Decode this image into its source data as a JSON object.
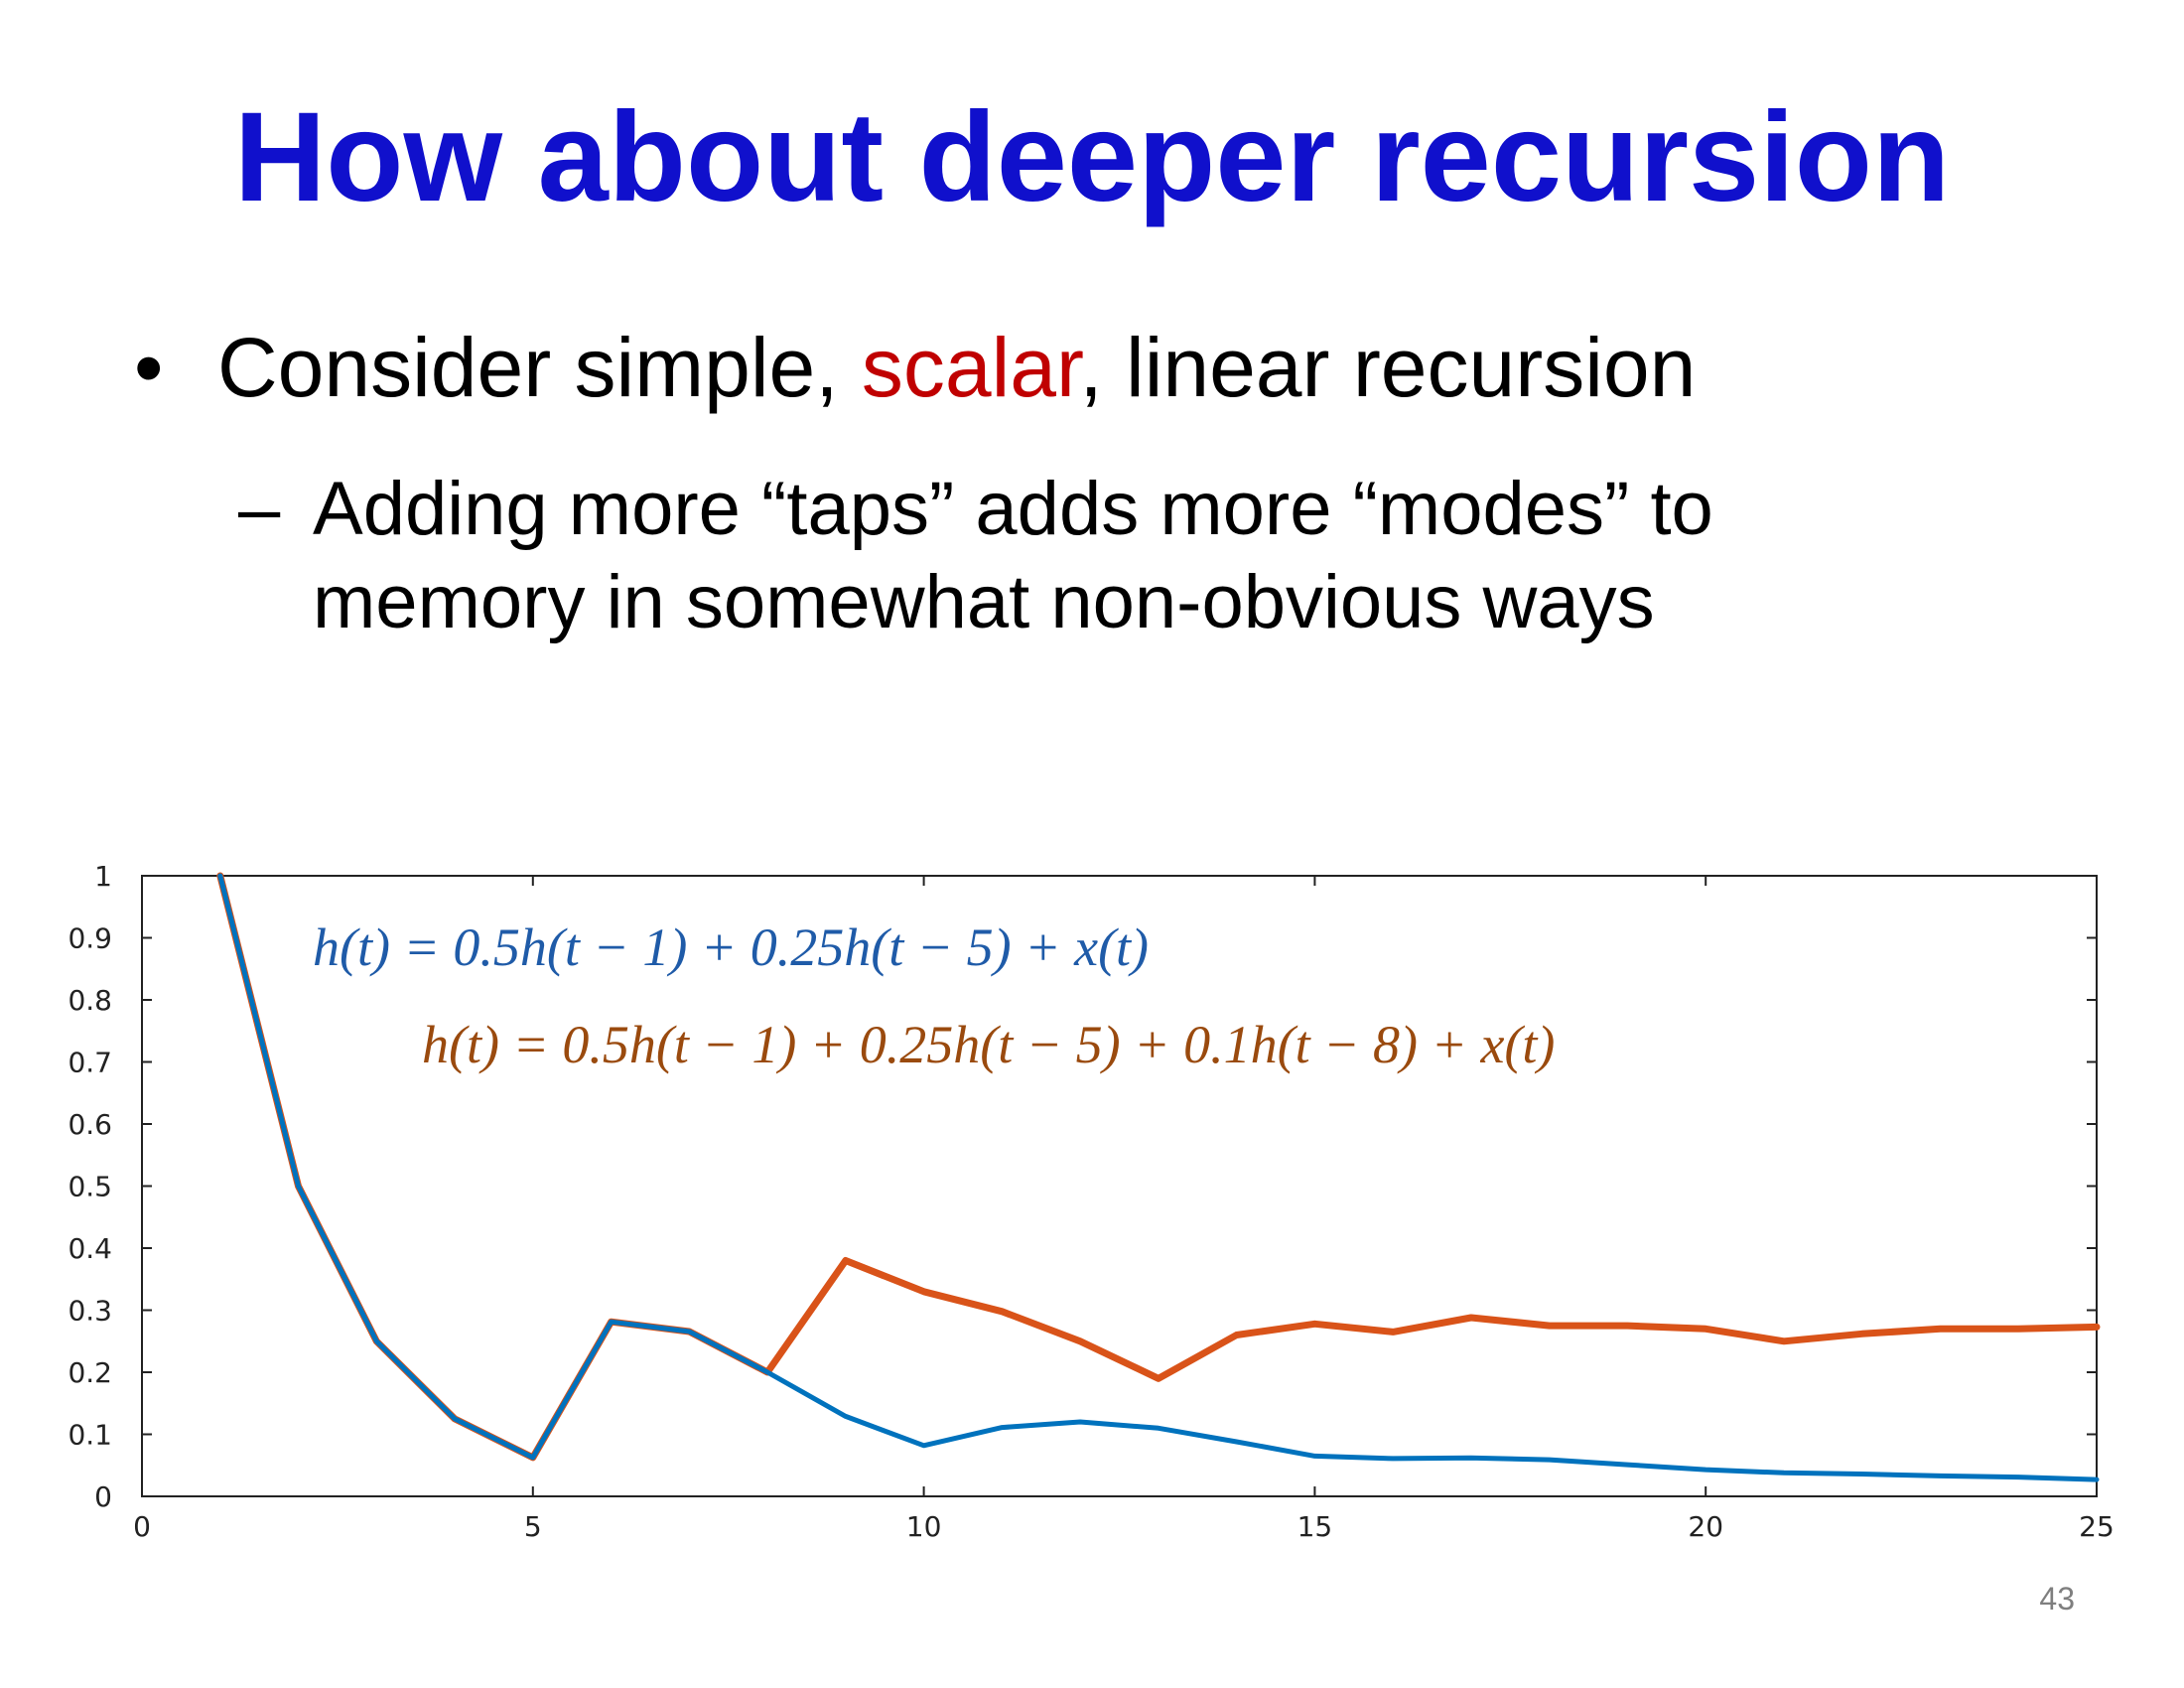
{
  "slide": {
    "title": "How about deeper recursion",
    "bullet": {
      "symbol": "•",
      "before": "Consider simple, ",
      "highlight": "scalar",
      "after": ", linear recursion"
    },
    "sub_bullet": {
      "symbol": "–",
      "text": "Adding more “taps” adds more “modes” to memory in somewhat non-obvious ways"
    },
    "slide_number": "43"
  },
  "chart_data": {
    "type": "line",
    "title": "",
    "xlabel": "",
    "ylabel": "",
    "xlim": [
      0,
      25
    ],
    "ylim": [
      0,
      1
    ],
    "xticks": [
      "0",
      "5",
      "10",
      "15",
      "20",
      "25"
    ],
    "yticks": [
      "0",
      "0.1",
      "0.2",
      "0.3",
      "0.4",
      "0.5",
      "0.6",
      "0.7",
      "0.8",
      "0.9",
      "1"
    ],
    "grid": false,
    "annotations": [
      {
        "text": "h(t) = 0.5h(t − 1) + 0.25h(t − 5) + x(t)",
        "color": "#1f5ba8"
      },
      {
        "text": "h(t) = 0.5h(t − 1) + 0.25h(t − 5) + 0.1h(t − 8) + x(t)",
        "color": "#9a4a0e"
      }
    ],
    "series": [
      {
        "color": "#0072bd",
        "x": [
          1,
          2,
          3,
          4,
          5,
          6,
          7,
          8,
          9,
          10,
          11,
          12,
          13,
          14,
          15,
          16,
          17,
          18,
          19,
          20,
          21,
          22,
          23,
          24,
          25
        ],
        "values": [
          1.0,
          0.5,
          0.25,
          0.125,
          0.0625,
          0.28125,
          0.265625,
          0.2,
          0.129,
          0.082,
          0.111,
          0.12,
          0.11,
          0.088,
          0.065,
          0.061,
          0.062,
          0.059,
          0.051,
          0.043,
          0.038,
          0.036,
          0.033,
          0.031,
          0.027
        ]
      },
      {
        "color": "#d95319",
        "x": [
          1,
          2,
          3,
          4,
          5,
          6,
          7,
          8,
          9,
          10,
          11,
          12,
          13,
          14,
          15,
          16,
          17,
          18,
          19,
          20,
          21,
          22,
          23,
          24,
          25
        ],
        "values": [
          1.0,
          0.5,
          0.25,
          0.125,
          0.0625,
          0.28125,
          0.265625,
          0.2,
          0.38,
          0.33,
          0.298,
          0.25,
          0.19,
          0.26,
          0.278,
          0.265,
          0.288,
          0.275,
          0.275,
          0.27,
          0.25,
          0.262,
          0.27,
          0.27,
          0.273
        ]
      }
    ]
  }
}
